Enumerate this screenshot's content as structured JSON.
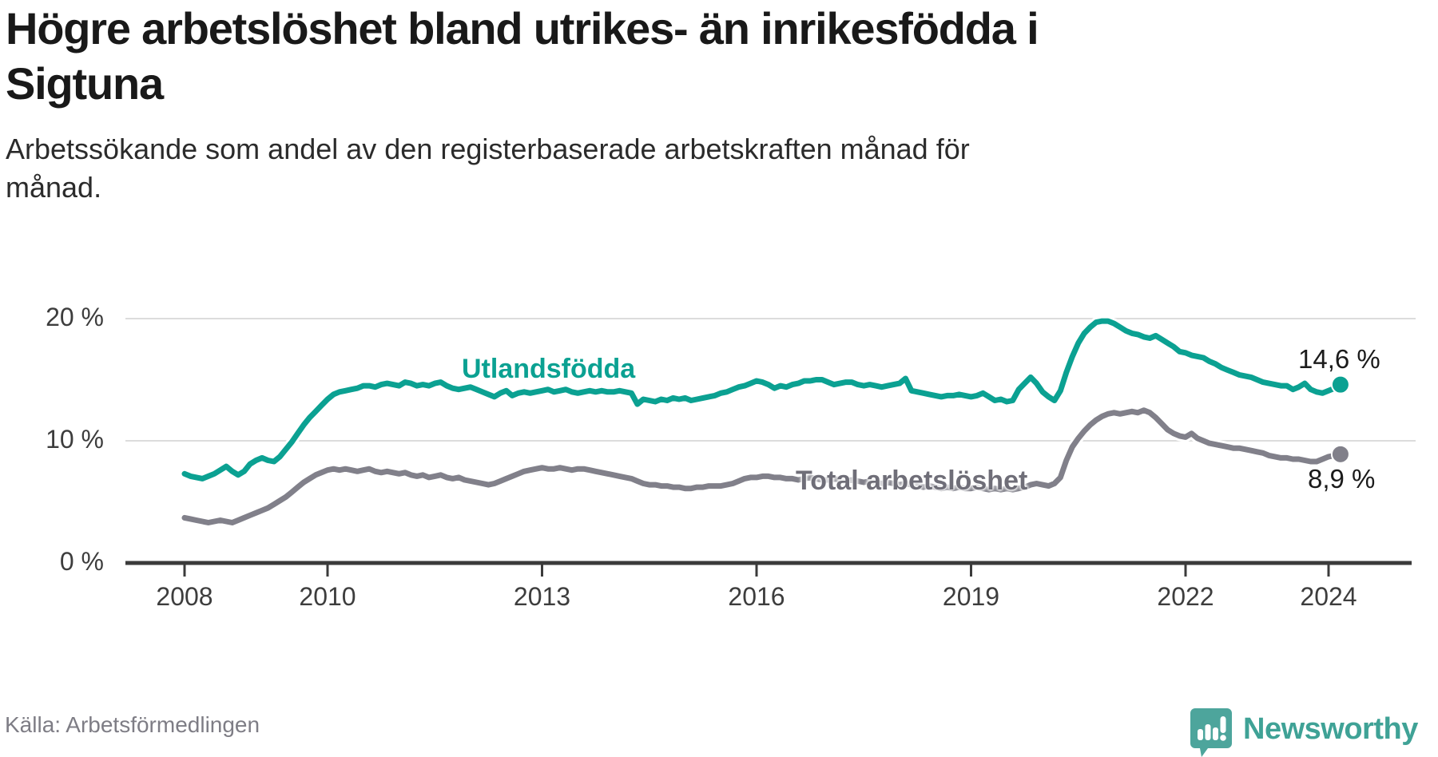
{
  "header": {
    "title": "Högre arbetslöshet bland utrikes- än inrikesfödda i Sigtuna",
    "title_lines": [
      "Högre arbetslöshet bland utrikes- än inrikesfödda i",
      "Sigtuna"
    ],
    "subtitle": "Arbetssökande som andel av den registerbaserade arbetskraften månad för månad.",
    "subtitle_lines": [
      "Arbetssökande som andel av den registerbaserade arbetskraften månad för",
      "månad."
    ]
  },
  "source": {
    "label": "Källa: Arbetsförmedlingen"
  },
  "brand": {
    "name": "Newsworthy",
    "icon": "newsworthy-speech-bubble-chart-icon",
    "icon_color": "#4da59c",
    "text_color": "#3fa296"
  },
  "colors": {
    "series_foreign_born": "#0ba192",
    "series_total": "#81808a",
    "series_total_label": "#6f6e78",
    "axis": "#3b3b3b",
    "gridline": "#dcdcdc",
    "tick_text": "#3d3d3d",
    "title_text": "#191919",
    "value_text": "#1b1b1b",
    "source_text": "#7e7d85"
  },
  "chart_data": {
    "type": "line",
    "title": "Högre arbetslöshet bland utrikes- än inrikesfödda i Sigtuna",
    "subtitle": "Arbetssökande som andel av den registerbaserade arbetskraften månad för månad.",
    "xlabel": "",
    "ylabel": "",
    "grid": "horizontal",
    "legend_position": "inline-labels",
    "x_unit": "month",
    "x_start_year": 2008.0,
    "x_end_year": 2024.17,
    "xlim": [
      2007.2,
      2025.2
    ],
    "ylim": [
      0,
      22
    ],
    "x_ticks": [
      2008,
      2010,
      2013,
      2016,
      2019,
      2022,
      2024
    ],
    "y_ticks": [
      {
        "value": 0,
        "label": "0 %"
      },
      {
        "value": 10,
        "label": "10 %"
      },
      {
        "value": 20,
        "label": "20 %"
      }
    ],
    "series": [
      {
        "name": "Utlandsfödda",
        "color": "#0ba192",
        "end_value": 14.6,
        "end_label": "14,6 %",
        "values": [
          7.3,
          7.1,
          7.0,
          6.9,
          7.1,
          7.3,
          7.6,
          7.9,
          7.5,
          7.2,
          7.5,
          8.1,
          8.4,
          8.6,
          8.4,
          8.3,
          8.7,
          9.3,
          9.9,
          10.6,
          11.3,
          11.9,
          12.4,
          12.9,
          13.4,
          13.8,
          14.0,
          14.1,
          14.2,
          14.3,
          14.5,
          14.5,
          14.4,
          14.6,
          14.7,
          14.6,
          14.5,
          14.8,
          14.7,
          14.5,
          14.6,
          14.5,
          14.7,
          14.8,
          14.5,
          14.3,
          14.2,
          14.3,
          14.4,
          14.2,
          14.0,
          13.8,
          13.6,
          13.9,
          14.1,
          13.7,
          13.9,
          14.0,
          13.9,
          14.0,
          14.1,
          14.2,
          14.0,
          14.1,
          14.2,
          14.0,
          13.9,
          14.0,
          14.1,
          14.0,
          14.1,
          14.0,
          14.0,
          14.1,
          14.0,
          13.9,
          13.0,
          13.4,
          13.3,
          13.2,
          13.4,
          13.3,
          13.5,
          13.4,
          13.5,
          13.3,
          13.4,
          13.5,
          13.6,
          13.7,
          13.9,
          14.0,
          14.2,
          14.4,
          14.5,
          14.7,
          14.9,
          14.8,
          14.6,
          14.3,
          14.5,
          14.4,
          14.6,
          14.7,
          14.9,
          14.9,
          15.0,
          15.0,
          14.8,
          14.6,
          14.7,
          14.8,
          14.8,
          14.6,
          14.5,
          14.6,
          14.5,
          14.4,
          14.5,
          14.6,
          14.7,
          15.1,
          14.1,
          14.0,
          13.9,
          13.8,
          13.7,
          13.6,
          13.7,
          13.7,
          13.8,
          13.7,
          13.6,
          13.7,
          13.9,
          13.6,
          13.3,
          13.4,
          13.2,
          13.3,
          14.2,
          14.7,
          15.2,
          14.7,
          14.0,
          13.6,
          13.3,
          14.1,
          15.6,
          16.9,
          18.0,
          18.8,
          19.3,
          19.7,
          19.8,
          19.8,
          19.6,
          19.3,
          19.0,
          18.8,
          18.7,
          18.5,
          18.4,
          18.6,
          18.3,
          18.0,
          17.7,
          17.3,
          17.2,
          17.0,
          16.9,
          16.8,
          16.5,
          16.3,
          16.0,
          15.8,
          15.6,
          15.4,
          15.3,
          15.2,
          15.0,
          14.8,
          14.7,
          14.6,
          14.5,
          14.5,
          14.2,
          14.4,
          14.7,
          14.2,
          14.0,
          13.9,
          14.1,
          14.3,
          14.6
        ]
      },
      {
        "name": "Total arbetslöshet",
        "color": "#81808a",
        "end_value": 8.9,
        "end_label": "8,9 %",
        "values": [
          3.7,
          3.6,
          3.5,
          3.4,
          3.3,
          3.4,
          3.5,
          3.4,
          3.3,
          3.5,
          3.7,
          3.9,
          4.1,
          4.3,
          4.5,
          4.8,
          5.1,
          5.4,
          5.8,
          6.2,
          6.6,
          6.9,
          7.2,
          7.4,
          7.6,
          7.7,
          7.6,
          7.7,
          7.6,
          7.5,
          7.6,
          7.7,
          7.5,
          7.4,
          7.5,
          7.4,
          7.3,
          7.4,
          7.2,
          7.1,
          7.2,
          7.0,
          7.1,
          7.2,
          7.0,
          6.9,
          7.0,
          6.8,
          6.7,
          6.6,
          6.5,
          6.4,
          6.5,
          6.7,
          6.9,
          7.1,
          7.3,
          7.5,
          7.6,
          7.7,
          7.8,
          7.7,
          7.7,
          7.8,
          7.7,
          7.6,
          7.7,
          7.7,
          7.6,
          7.5,
          7.4,
          7.3,
          7.2,
          7.1,
          7.0,
          6.9,
          6.7,
          6.5,
          6.4,
          6.4,
          6.3,
          6.3,
          6.2,
          6.2,
          6.1,
          6.1,
          6.2,
          6.2,
          6.3,
          6.3,
          6.3,
          6.4,
          6.5,
          6.7,
          6.9,
          7.0,
          7.0,
          7.1,
          7.1,
          7.0,
          7.0,
          6.9,
          6.9,
          6.8,
          6.9,
          7.0,
          6.9,
          6.8,
          6.8,
          6.9,
          6.8,
          6.7,
          6.8,
          6.7,
          6.6,
          6.7,
          6.6,
          6.5,
          6.6,
          6.5,
          6.4,
          6.5,
          6.4,
          6.3,
          6.2,
          6.3,
          6.2,
          6.1,
          6.2,
          6.1,
          6.2,
          6.1,
          6.1,
          6.2,
          6.1,
          6.0,
          6.1,
          6.0,
          6.1,
          6.0,
          6.1,
          6.2,
          6.4,
          6.5,
          6.4,
          6.3,
          6.5,
          7.0,
          8.4,
          9.5,
          10.2,
          10.8,
          11.3,
          11.7,
          12.0,
          12.2,
          12.3,
          12.2,
          12.3,
          12.4,
          12.3,
          12.5,
          12.3,
          11.9,
          11.4,
          10.9,
          10.6,
          10.4,
          10.3,
          10.6,
          10.2,
          10.0,
          9.8,
          9.7,
          9.6,
          9.5,
          9.4,
          9.4,
          9.3,
          9.2,
          9.1,
          9.0,
          8.8,
          8.7,
          8.6,
          8.6,
          8.5,
          8.5,
          8.4,
          8.3,
          8.3,
          8.5,
          8.7,
          8.8,
          8.9
        ]
      }
    ]
  }
}
